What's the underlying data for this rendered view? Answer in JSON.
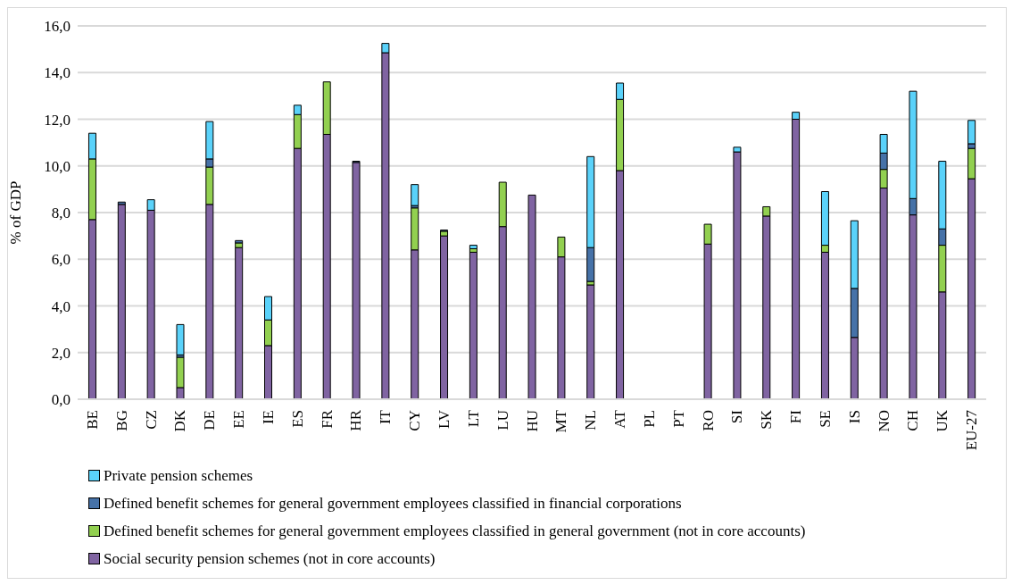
{
  "chart_data": {
    "type": "bar",
    "stacked": true,
    "ylabel": "% of GDP",
    "categories": [
      "BE",
      "BG",
      "CZ",
      "DK",
      "DE",
      "EE",
      "IE",
      "ES",
      "FR",
      "HR",
      "IT",
      "CY",
      "LV",
      "LT",
      "LU",
      "HU",
      "MT",
      "NL",
      "AT",
      "PL",
      "PT",
      "RO",
      "SI",
      "SK",
      "FI",
      "SE",
      "IS",
      "NO",
      "CH",
      "UK",
      "EU-27"
    ],
    "series": [
      {
        "name": "Social security pension schemes (not in core accounts)",
        "color": "#8064a2",
        "values": [
          7.7,
          8.35,
          8.1,
          0.5,
          8.35,
          6.5,
          2.3,
          10.75,
          11.35,
          10.15,
          14.85,
          6.4,
          7.0,
          6.3,
          7.4,
          8.75,
          6.1,
          4.9,
          9.8,
          null,
          null,
          6.65,
          10.6,
          7.85,
          12.0,
          6.3,
          2.65,
          9.05,
          7.9,
          4.6,
          9.45
        ]
      },
      {
        "name": "Defined benefit schemes for general government employees classified in general government (not in core accounts)",
        "color": "#92d050",
        "values": [
          2.6,
          0,
          0,
          1.3,
          1.6,
          0.2,
          1.1,
          1.45,
          2.25,
          0,
          0,
          1.8,
          0.2,
          0.15,
          1.9,
          0,
          0.85,
          0.15,
          3.05,
          null,
          null,
          0.85,
          0,
          0.4,
          0,
          0.3,
          0,
          0.8,
          0,
          2.0,
          1.3
        ]
      },
      {
        "name": "Defined benefit schemes for general government employees classified in financial corporations",
        "color": "#4672a8",
        "values": [
          0,
          0.1,
          0,
          0.1,
          0.35,
          0.1,
          0,
          0,
          0,
          0.05,
          0,
          0.1,
          0.05,
          0,
          0,
          0,
          0,
          1.45,
          0,
          null,
          null,
          0,
          0,
          0,
          0,
          null,
          2.1,
          0.7,
          0.7,
          0.7,
          0.2
        ]
      },
      {
        "name": "Private pension schemes",
        "color": "#5ad2fa",
        "values": [
          1.1,
          0,
          0.45,
          1.3,
          1.6,
          0,
          1.0,
          0.4,
          0,
          0,
          0.4,
          0.9,
          0,
          0.15,
          0,
          0,
          0,
          3.9,
          0.7,
          null,
          null,
          0,
          0.2,
          0,
          0.3,
          2.3,
          2.9,
          0.8,
          4.6,
          2.9,
          1.0
        ]
      }
    ],
    "ylim": [
      0,
      16
    ],
    "yticks": [
      {
        "value": 0,
        "label": "0,0"
      },
      {
        "value": 2,
        "label": "2,0"
      },
      {
        "value": 4,
        "label": "4,0"
      },
      {
        "value": 6,
        "label": "6,0"
      },
      {
        "value": 8,
        "label": "8,0"
      },
      {
        "value": 10,
        "label": "10,0"
      },
      {
        "value": 12,
        "label": "12,0"
      },
      {
        "value": 14,
        "label": "14,0"
      },
      {
        "value": 16,
        "label": "16,0"
      }
    ],
    "grid": "y",
    "legend": "bottom"
  }
}
